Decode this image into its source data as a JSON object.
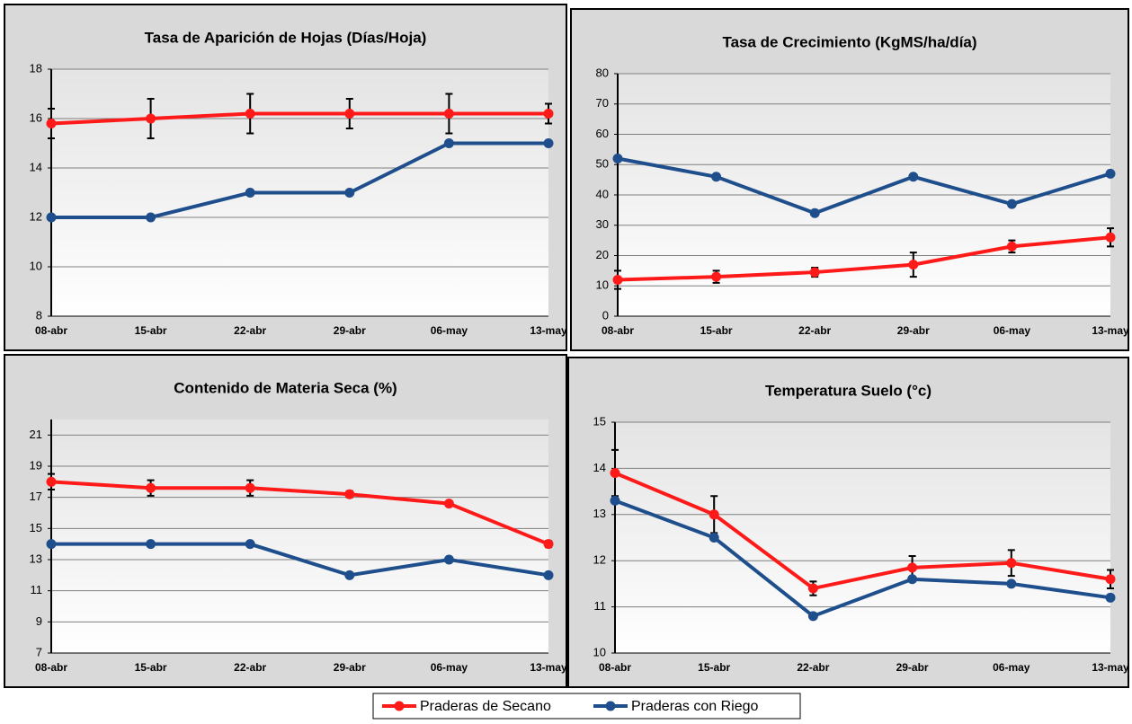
{
  "chart_data": [
    {
      "type": "line",
      "title": "Tasa de Aparición de Hojas (Días/Hoja)",
      "categories": [
        "08-abr",
        "15-abr",
        "22-abr",
        "29-abr",
        "06-may",
        "13-may"
      ],
      "ylim": [
        8,
        18
      ],
      "yticks": [
        8,
        10,
        12,
        14,
        16,
        18
      ],
      "grid": true,
      "series": [
        {
          "name": "Praderas de Secano",
          "color": "#ff1a1a",
          "values": [
            15.8,
            16.0,
            16.2,
            16.2,
            16.2,
            16.2
          ],
          "errors": [
            0.6,
            0.8,
            0.8,
            0.6,
            0.8,
            0.4
          ]
        },
        {
          "name": "Praderas con Riego",
          "color": "#1f4e8c",
          "values": [
            12,
            12,
            13,
            13,
            15,
            15
          ]
        }
      ]
    },
    {
      "type": "line",
      "title": "Tasa de Crecimiento (KgMS/ha/día)",
      "categories": [
        "08-abr",
        "15-abr",
        "22-abr",
        "29-abr",
        "06-may",
        "13-may"
      ],
      "ylim": [
        0,
        80
      ],
      "yticks": [
        0,
        10,
        20,
        30,
        40,
        50,
        60,
        70,
        80
      ],
      "grid": true,
      "series": [
        {
          "color": "#ff1a1a",
          "values": [
            12,
            13,
            14.5,
            17,
            23,
            26
          ],
          "errors": [
            3,
            2,
            1.5,
            4,
            2,
            3
          ]
        },
        {
          "color": "#1f4e8c",
          "values": [
            52,
            46,
            34,
            46,
            37,
            47
          ]
        }
      ]
    },
    {
      "type": "line",
      "title": "Contenido de Materia Seca (%)",
      "categories": [
        "08-abr",
        "15-abr",
        "22-abr",
        "29-abr",
        "06-may",
        "13-may"
      ],
      "ylim": [
        7,
        22
      ],
      "yticks": [
        7,
        9,
        11,
        13,
        15,
        17,
        19,
        21
      ],
      "grid": true,
      "series": [
        {
          "color": "#ff1a1a",
          "values": [
            18,
            17.6,
            17.6,
            17.2,
            16.6,
            14
          ],
          "errors": [
            0.5,
            0.5,
            0.5,
            0.2,
            0.1,
            0.2
          ]
        },
        {
          "color": "#1f4e8c",
          "values": [
            14,
            14,
            14,
            12,
            13,
            12
          ]
        }
      ]
    },
    {
      "type": "line",
      "title": "Temperatura Suelo (°c)",
      "categories": [
        "08-abr",
        "15-abr",
        "22-abr",
        "29-abr",
        "06-may",
        "13-may"
      ],
      "ylim": [
        10,
        15
      ],
      "yticks": [
        10,
        11,
        12,
        13,
        14,
        15
      ],
      "grid": true,
      "series": [
        {
          "color": "#ff1a1a",
          "values": [
            13.9,
            13.0,
            11.4,
            11.85,
            11.95,
            11.6
          ],
          "errors": [
            0.5,
            0.4,
            0.15,
            0.25,
            0.28,
            0.2
          ]
        },
        {
          "color": "#1f4e8c",
          "values": [
            13.3,
            12.5,
            10.8,
            11.6,
            11.5,
            11.2
          ]
        }
      ]
    }
  ]
}
